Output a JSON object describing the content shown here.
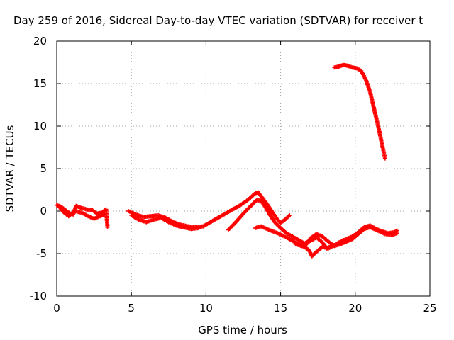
{
  "chart_data": {
    "type": "scatter",
    "title": "Day 259 of 2016, Sidereal Day-to-day VTEC variation (SDTVAR) for receiver t",
    "xlabel": "GPS time / hours",
    "ylabel": "SDTVAR / TECUs",
    "xlim": [
      0,
      25
    ],
    "ylim": [
      -10,
      20
    ],
    "xticks": [
      "0",
      "5",
      "10",
      "15",
      "20",
      "25"
    ],
    "yticks": [
      "-10",
      "-5",
      "0",
      "5",
      "10",
      "15",
      "20"
    ],
    "grid": true,
    "legend": "none",
    "series_color": "#ff0000",
    "series": [
      {
        "values": [
          [
            0.0,
            0.7
          ],
          [
            0.3,
            0.5
          ],
          [
            0.6,
            0.1
          ],
          [
            0.9,
            -0.3
          ],
          [
            1.1,
            -0.4
          ],
          [
            1.3,
            0.6
          ],
          [
            1.6,
            0.4
          ],
          [
            2.0,
            0.2
          ],
          [
            2.4,
            0.1
          ],
          [
            2.7,
            -0.3
          ],
          [
            3.0,
            -0.2
          ],
          [
            3.3,
            0.2
          ],
          [
            3.4,
            -1.9
          ]
        ]
      },
      {
        "values": [
          [
            0.2,
            0.4
          ],
          [
            0.5,
            -0.2
          ],
          [
            0.8,
            -0.6
          ],
          [
            1.2,
            0.0
          ],
          [
            1.7,
            -0.2
          ],
          [
            2.1,
            -0.6
          ],
          [
            2.5,
            -0.9
          ],
          [
            2.9,
            -0.6
          ],
          [
            3.2,
            -0.4
          ]
        ]
      },
      {
        "values": [
          [
            4.8,
            0.0
          ],
          [
            5.3,
            -0.4
          ],
          [
            5.8,
            -0.7
          ],
          [
            6.3,
            -0.6
          ],
          [
            6.8,
            -0.5
          ],
          [
            7.3,
            -0.8
          ],
          [
            7.8,
            -1.3
          ],
          [
            8.3,
            -1.6
          ],
          [
            8.8,
            -1.8
          ],
          [
            9.3,
            -1.9
          ],
          [
            9.8,
            -1.8
          ],
          [
            10.3,
            -1.3
          ],
          [
            10.8,
            -0.8
          ],
          [
            11.3,
            -0.3
          ],
          [
            11.8,
            0.2
          ],
          [
            12.3,
            0.7
          ],
          [
            12.8,
            1.3
          ],
          [
            13.3,
            2.1
          ],
          [
            13.5,
            2.2
          ],
          [
            13.8,
            1.5
          ],
          [
            14.1,
            0.8
          ],
          [
            14.4,
            0.0
          ],
          [
            14.7,
            -0.8
          ],
          [
            15.0,
            -1.4
          ],
          [
            15.3,
            -1.0
          ],
          [
            15.6,
            -0.5
          ]
        ]
      },
      {
        "values": [
          [
            5.0,
            -0.5
          ],
          [
            5.5,
            -1.0
          ],
          [
            6.0,
            -1.3
          ],
          [
            6.5,
            -1.0
          ],
          [
            7.0,
            -0.8
          ],
          [
            7.5,
            -1.3
          ],
          [
            8.0,
            -1.7
          ],
          [
            8.5,
            -1.9
          ],
          [
            9.0,
            -2.1
          ],
          [
            9.5,
            -2.0
          ]
        ]
      },
      {
        "values": [
          [
            11.5,
            -2.2
          ],
          [
            12.0,
            -1.3
          ],
          [
            12.5,
            -0.3
          ],
          [
            13.0,
            0.6
          ],
          [
            13.4,
            1.3
          ],
          [
            13.7,
            1.2
          ],
          [
            14.0,
            0.4
          ],
          [
            14.3,
            -0.5
          ],
          [
            14.6,
            -1.3
          ],
          [
            15.0,
            -2.0
          ],
          [
            15.4,
            -2.6
          ],
          [
            15.8,
            -3.0
          ],
          [
            16.2,
            -3.4
          ],
          [
            16.6,
            -3.8
          ],
          [
            17.0,
            -3.5
          ],
          [
            17.4,
            -3.1
          ],
          [
            17.8,
            -3.7
          ],
          [
            18.1,
            -4.4
          ],
          [
            18.4,
            -4.1
          ]
        ]
      },
      {
        "values": [
          [
            13.3,
            -2.0
          ],
          [
            13.7,
            -1.8
          ],
          [
            14.2,
            -2.2
          ],
          [
            14.8,
            -2.6
          ],
          [
            15.4,
            -3.1
          ],
          [
            16.0,
            -3.7
          ],
          [
            16.5,
            -4.1
          ],
          [
            16.9,
            -4.6
          ],
          [
            17.1,
            -5.3
          ],
          [
            17.4,
            -4.8
          ],
          [
            17.8,
            -4.2
          ],
          [
            18.2,
            -4.4
          ],
          [
            18.6,
            -4.0
          ],
          [
            19.0,
            -3.6
          ],
          [
            19.4,
            -3.3
          ],
          [
            19.8,
            -3.0
          ],
          [
            20.2,
            -2.5
          ],
          [
            20.6,
            -1.9
          ],
          [
            21.0,
            -1.7
          ],
          [
            21.4,
            -2.1
          ],
          [
            21.8,
            -2.4
          ],
          [
            22.2,
            -2.6
          ],
          [
            22.6,
            -2.5
          ],
          [
            22.8,
            -2.3
          ]
        ]
      },
      {
        "values": [
          [
            16.0,
            -3.9
          ],
          [
            16.6,
            -4.2
          ],
          [
            17.0,
            -3.2
          ],
          [
            17.4,
            -2.7
          ],
          [
            17.8,
            -3.0
          ],
          [
            18.2,
            -3.6
          ],
          [
            18.6,
            -4.1
          ],
          [
            19.0,
            -3.9
          ],
          [
            19.4,
            -3.6
          ],
          [
            19.8,
            -3.3
          ],
          [
            20.2,
            -2.7
          ],
          [
            20.6,
            -2.1
          ],
          [
            21.0,
            -1.9
          ],
          [
            21.5,
            -2.3
          ],
          [
            22.0,
            -2.7
          ],
          [
            22.5,
            -2.8
          ],
          [
            22.8,
            -2.6
          ]
        ]
      },
      {
        "values": [
          [
            18.6,
            16.9
          ],
          [
            18.9,
            17.0
          ],
          [
            19.2,
            17.2
          ],
          [
            19.5,
            17.1
          ],
          [
            19.8,
            16.9
          ],
          [
            20.1,
            16.8
          ],
          [
            20.4,
            16.5
          ],
          [
            20.7,
            15.5
          ],
          [
            21.0,
            14.0
          ],
          [
            21.2,
            12.5
          ],
          [
            21.4,
            11.0
          ],
          [
            21.6,
            9.5
          ],
          [
            21.8,
            7.8
          ],
          [
            22.0,
            6.2
          ]
        ]
      }
    ]
  }
}
